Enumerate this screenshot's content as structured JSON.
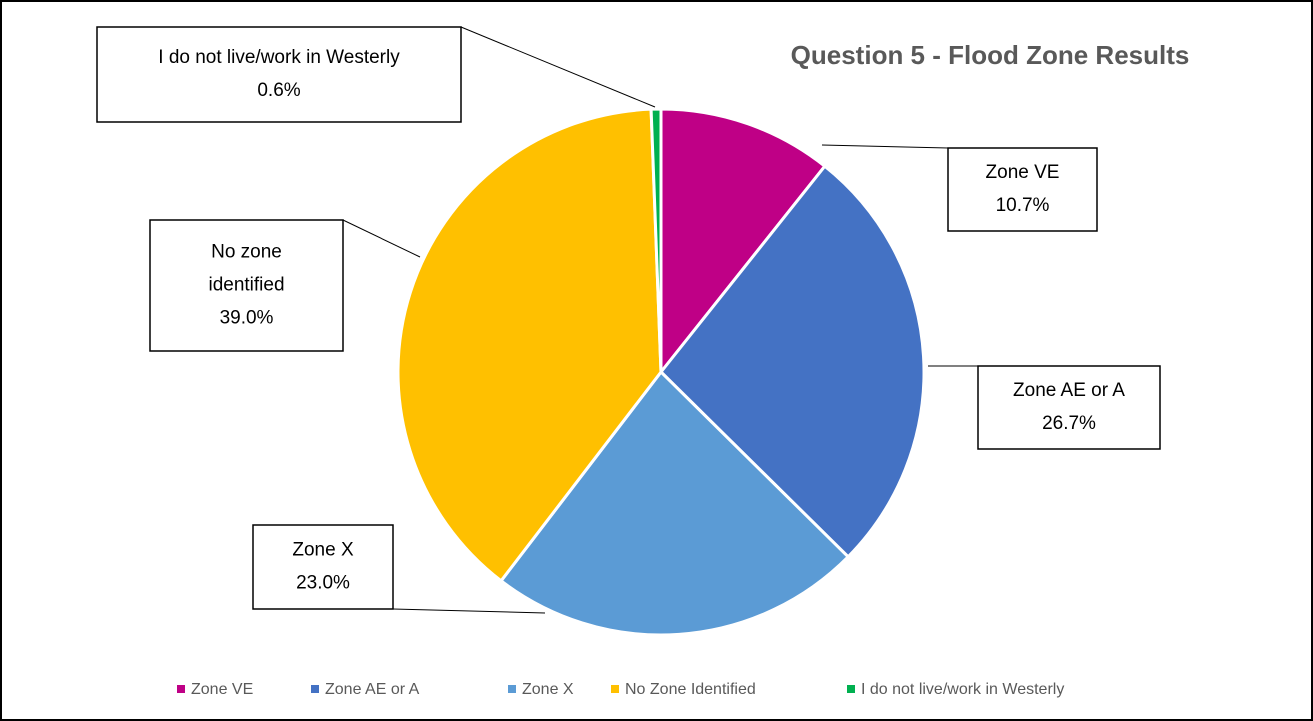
{
  "chart_data": {
    "type": "pie",
    "title": "Question 5 - Flood Zone Results",
    "categories": [
      "Zone VE",
      "Zone AE or A",
      "Zone X",
      "No Zone Identified",
      "I do not live/work in Westerly"
    ],
    "values": [
      10.7,
      26.7,
      23.0,
      39.0,
      0.6
    ],
    "value_labels": [
      "10.7%",
      "26.7%",
      "23.0%",
      "39.0%",
      "0.6%"
    ],
    "label_lines": [
      [
        "Zone VE"
      ],
      [
        "Zone AE or A"
      ],
      [
        "Zone X"
      ],
      [
        "No zone",
        "identified"
      ],
      [
        "I do not live/work in Westerly"
      ]
    ],
    "colors": [
      "#bf0086",
      "#4472c4",
      "#5b9bd5",
      "#ffc000",
      "#00b050"
    ],
    "legend": "bottom"
  }
}
